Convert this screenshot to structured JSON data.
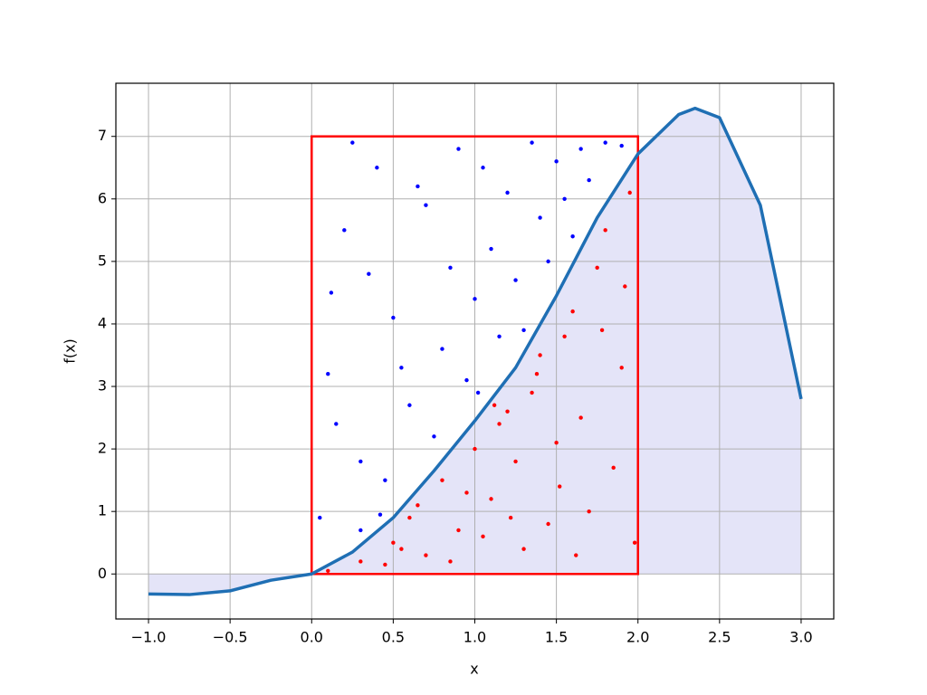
{
  "chart_data": {
    "type": "monte-carlo",
    "x_label": "x",
    "y_label": "f(x)",
    "xlim": [
      -1.2,
      3.2
    ],
    "ylim": [
      -0.72,
      7.85
    ],
    "xticks": [
      {
        "value": -1,
        "label": "−1.0"
      },
      {
        "value": -0.5,
        "label": "−0.5"
      },
      {
        "value": 0,
        "label": "0.0"
      },
      {
        "value": 0.5,
        "label": "0.5"
      },
      {
        "value": 1,
        "label": "1.0"
      },
      {
        "value": 1.5,
        "label": "1.5"
      },
      {
        "value": 2,
        "label": "2.0"
      },
      {
        "value": 2.5,
        "label": "2.5"
      },
      {
        "value": 3,
        "label": "3.0"
      }
    ],
    "yticks": [
      0,
      1,
      2,
      3,
      4,
      5,
      6,
      7
    ],
    "grid": true,
    "curve": {
      "color": "#1f6fb4",
      "fill": "#e4e4f8",
      "x": [
        -1,
        -0.75,
        -0.5,
        -0.25,
        0,
        0.25,
        0.5,
        0.75,
        1,
        1.25,
        1.5,
        1.75,
        2,
        2.25,
        2.35,
        2.5,
        2.75,
        3
      ],
      "values": [
        -0.32,
        -0.33,
        -0.27,
        -0.1,
        0,
        0.35,
        0.9,
        1.65,
        2.45,
        3.3,
        4.45,
        5.7,
        6.72,
        7.35,
        7.45,
        7.3,
        5.9,
        2.8
      ]
    },
    "box": {
      "color": "#ff0000",
      "x": [
        0,
        2
      ],
      "y": [
        0,
        7
      ]
    },
    "series": [
      {
        "color": "#0000ff",
        "x": [
          0.1,
          0.2,
          0.3,
          0.4,
          0.5,
          0.6,
          0.7,
          0.8,
          0.9,
          1.0,
          1.1,
          1.2,
          1.3,
          1.4,
          1.5,
          1.6,
          1.7,
          1.8,
          1.9,
          0.05,
          0.15,
          0.25,
          0.35,
          0.45,
          0.55,
          0.65,
          0.75,
          0.85,
          0.95,
          1.05,
          1.15,
          1.25,
          1.35,
          1.45,
          1.55,
          1.65,
          0.12,
          0.42,
          0.3,
          1.02
        ],
        "values": [
          3.2,
          5.5,
          1.8,
          6.5,
          4.1,
          2.7,
          5.9,
          3.6,
          6.8,
          4.4,
          5.2,
          6.1,
          3.9,
          5.7,
          6.6,
          5.4,
          6.3,
          6.9,
          6.85,
          0.9,
          2.4,
          6.9,
          4.8,
          1.5,
          3.3,
          6.2,
          2.2,
          4.9,
          3.1,
          6.5,
          3.8,
          4.7,
          6.9,
          5.0,
          6.0,
          6.8,
          4.5,
          0.95,
          0.7,
          2.9
        ]
      },
      {
        "color": "#ff0000",
        "x": [
          0.1,
          0.3,
          0.5,
          0.6,
          0.7,
          0.8,
          0.9,
          1.0,
          1.1,
          1.2,
          1.3,
          1.4,
          1.5,
          1.6,
          1.7,
          1.8,
          1.9,
          1.95,
          1.25,
          1.35,
          1.45,
          1.55,
          1.65,
          1.75,
          1.85,
          1.05,
          1.15,
          0.95,
          0.85,
          0.65,
          0.55,
          0.45,
          1.98,
          1.92,
          1.78,
          1.62,
          1.52,
          1.38,
          1.22,
          1.12
        ],
        "values": [
          0.05,
          0.2,
          0.5,
          0.9,
          0.3,
          1.5,
          0.7,
          2.0,
          1.2,
          2.6,
          0.4,
          3.5,
          2.1,
          4.2,
          1.0,
          5.5,
          3.3,
          6.1,
          1.8,
          2.9,
          0.8,
          3.8,
          2.5,
          4.9,
          1.7,
          0.6,
          2.4,
          1.3,
          0.2,
          1.1,
          0.4,
          0.15,
          0.5,
          4.6,
          3.9,
          0.3,
          1.4,
          3.2,
          0.9,
          2.7
        ]
      }
    ]
  }
}
